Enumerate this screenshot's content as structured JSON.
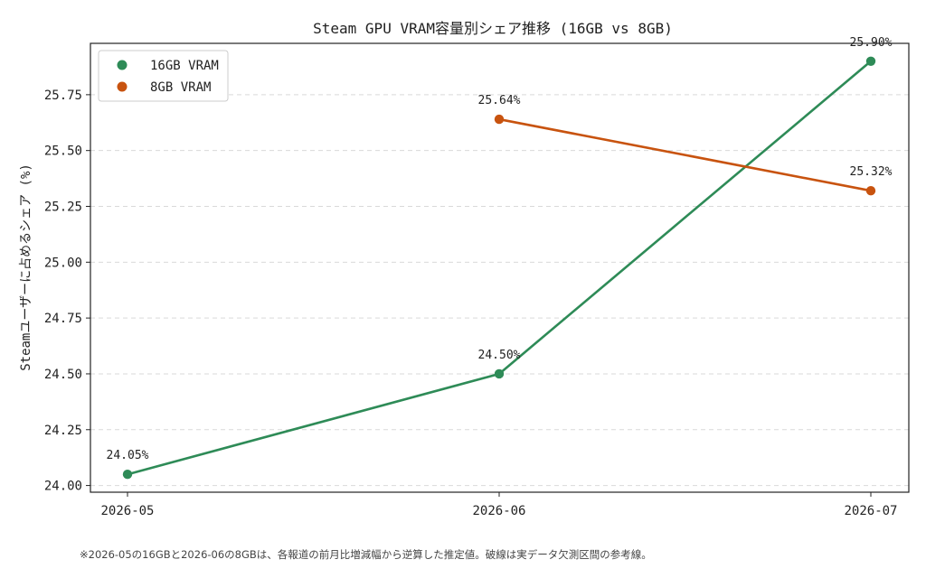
{
  "chart_data": {
    "type": "line",
    "title": "Steam GPU VRAM容量別シェア推移 (16GB vs 8GB)",
    "xlabel": "",
    "ylabel": "Steamユーザーに占めるシェア (%)",
    "categories": [
      "2026-05",
      "2026-06",
      "2026-07"
    ],
    "ylim": [
      23.97,
      25.98
    ],
    "yticks": [
      24.0,
      24.25,
      24.5,
      24.75,
      25.0,
      25.25,
      25.5,
      25.75
    ],
    "ytick_labels": [
      "24.00",
      "24.25",
      "24.50",
      "24.75",
      "25.00",
      "25.25",
      "25.50",
      "25.75"
    ],
    "grid": "horizontal-dashed",
    "legend_position": "top-left",
    "series": [
      {
        "name": "16GB VRAM",
        "color": "#2e8b57",
        "values": [
          24.05,
          24.5,
          25.9
        ],
        "labels": [
          "24.05%",
          "24.50%",
          "25.90%"
        ]
      },
      {
        "name": "8GB VRAM",
        "color": "#c8530f",
        "values": [
          null,
          25.64,
          25.32
        ],
        "labels": [
          null,
          "25.64%",
          "25.32%"
        ]
      }
    ]
  },
  "footnote": "※2026-05の16GBと2026-06の8GBは、各報道の前月比増減幅から逆算した推定値。破線は実データ欠測区間の参考線。"
}
